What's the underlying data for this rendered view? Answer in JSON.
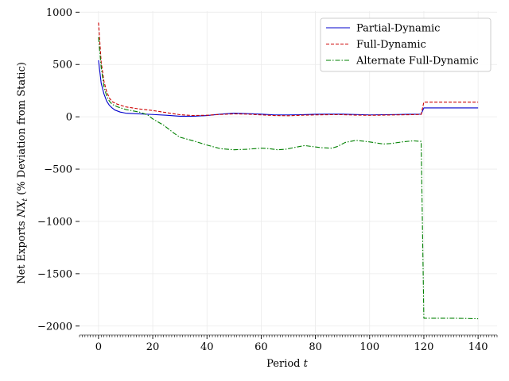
{
  "chart_data": {
    "type": "line",
    "title": "",
    "xlabel": "Period t",
    "xlabel_main": "Period ",
    "xlabel_var": "t",
    "ylabel": "Net Exports N̂X_t (% Deviation from Static)",
    "ylabel_pre": "Net Exports ",
    "ylabel_var": "NX",
    "ylabel_sub": "t",
    "ylabel_post": " (% Deviation from Static)",
    "xlim": [
      -7,
      147
    ],
    "ylim": [
      -2070,
      1010
    ],
    "x_ticks": [
      0,
      20,
      40,
      60,
      80,
      100,
      120,
      140
    ],
    "y_ticks": [
      1000,
      500,
      0,
      -500,
      -1000,
      -1500,
      -2000
    ],
    "y_tick_labels": [
      "1000",
      "500",
      "0",
      "−500",
      "−1000",
      "−1500",
      "−2000"
    ],
    "grid": true,
    "legend": "top-right",
    "series": [
      {
        "name": "Partial-Dynamic",
        "color": "#0000cc",
        "dash": "solid",
        "points": [
          [
            0,
            540
          ],
          [
            1,
            320
          ],
          [
            2,
            220
          ],
          [
            3,
            150
          ],
          [
            4,
            110
          ],
          [
            5,
            85
          ],
          [
            6,
            65
          ],
          [
            8,
            45
          ],
          [
            10,
            35
          ],
          [
            15,
            28
          ],
          [
            20,
            22
          ],
          [
            25,
            15
          ],
          [
            30,
            5
          ],
          [
            35,
            5
          ],
          [
            40,
            12
          ],
          [
            45,
            25
          ],
          [
            50,
            35
          ],
          [
            55,
            30
          ],
          [
            60,
            25
          ],
          [
            65,
            18
          ],
          [
            70,
            18
          ],
          [
            75,
            20
          ],
          [
            80,
            24
          ],
          [
            85,
            25
          ],
          [
            90,
            25
          ],
          [
            95,
            22
          ],
          [
            100,
            18
          ],
          [
            105,
            20
          ],
          [
            110,
            22
          ],
          [
            115,
            24
          ],
          [
            119,
            25
          ],
          [
            120,
            85
          ],
          [
            125,
            85
          ],
          [
            130,
            85
          ],
          [
            135,
            85
          ],
          [
            140,
            85
          ]
        ]
      },
      {
        "name": "Full-Dynamic",
        "color": "#cc0000",
        "dash": "dashed",
        "points": [
          [
            0,
            900
          ],
          [
            1,
            520
          ],
          [
            2,
            340
          ],
          [
            3,
            240
          ],
          [
            4,
            180
          ],
          [
            5,
            145
          ],
          [
            7,
            120
          ],
          [
            10,
            95
          ],
          [
            15,
            75
          ],
          [
            20,
            60
          ],
          [
            25,
            40
          ],
          [
            30,
            20
          ],
          [
            35,
            12
          ],
          [
            40,
            15
          ],
          [
            45,
            22
          ],
          [
            50,
            28
          ],
          [
            55,
            25
          ],
          [
            60,
            18
          ],
          [
            65,
            12
          ],
          [
            70,
            10
          ],
          [
            75,
            15
          ],
          [
            80,
            18
          ],
          [
            85,
            20
          ],
          [
            90,
            20
          ],
          [
            95,
            16
          ],
          [
            100,
            14
          ],
          [
            105,
            16
          ],
          [
            110,
            18
          ],
          [
            115,
            20
          ],
          [
            119,
            22
          ],
          [
            120,
            140
          ],
          [
            125,
            140
          ],
          [
            130,
            140
          ],
          [
            135,
            140
          ],
          [
            140,
            140
          ]
        ]
      },
      {
        "name": "Alternate Full-Dynamic",
        "color": "#008000",
        "dash": "dashdot",
        "points": [
          [
            0,
            760
          ],
          [
            1,
            470
          ],
          [
            2,
            290
          ],
          [
            3,
            200
          ],
          [
            4,
            150
          ],
          [
            5,
            120
          ],
          [
            7,
            95
          ],
          [
            10,
            70
          ],
          [
            15,
            45
          ],
          [
            18,
            20
          ],
          [
            20,
            -20
          ],
          [
            24,
            -80
          ],
          [
            28,
            -160
          ],
          [
            30,
            -195
          ],
          [
            35,
            -230
          ],
          [
            40,
            -270
          ],
          [
            45,
            -305
          ],
          [
            50,
            -315
          ],
          [
            55,
            -310
          ],
          [
            60,
            -300
          ],
          [
            62,
            -302
          ],
          [
            66,
            -315
          ],
          [
            69,
            -310
          ],
          [
            72,
            -295
          ],
          [
            76,
            -275
          ],
          [
            79,
            -285
          ],
          [
            82,
            -295
          ],
          [
            86,
            -300
          ],
          [
            88,
            -285
          ],
          [
            91,
            -245
          ],
          [
            95,
            -225
          ],
          [
            100,
            -240
          ],
          [
            105,
            -260
          ],
          [
            108,
            -255
          ],
          [
            112,
            -240
          ],
          [
            116,
            -230
          ],
          [
            119,
            -235
          ],
          [
            120,
            -1925
          ],
          [
            125,
            -1925
          ],
          [
            130,
            -1925
          ],
          [
            135,
            -1927
          ],
          [
            140,
            -1930
          ]
        ]
      }
    ]
  }
}
